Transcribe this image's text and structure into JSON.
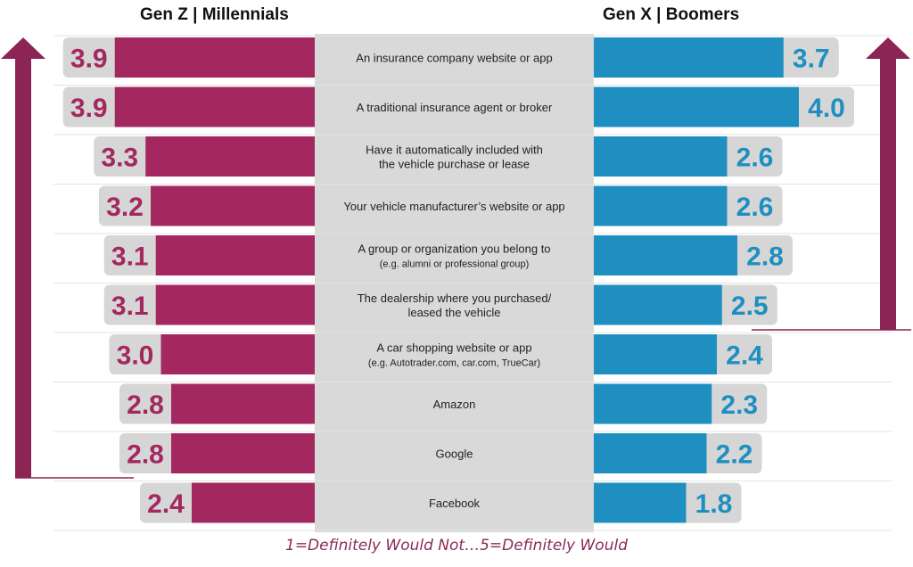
{
  "chart_data": {
    "type": "bar",
    "left_header": "Gen Z | Millennials",
    "right_header": "Gen X | Boomers",
    "categories": [
      {
        "line1": "An insurance company website or app",
        "line2": "",
        "sub": ""
      },
      {
        "line1": "A traditional insurance agent or broker",
        "line2": "",
        "sub": ""
      },
      {
        "line1": "Have it automatically included with",
        "line2": "the vehicle purchase or lease",
        "sub": ""
      },
      {
        "line1": "Your vehicle manufacturer’s website or app",
        "line2": "",
        "sub": ""
      },
      {
        "line1": "A group or organization you belong to",
        "line2": "",
        "sub": "(e.g. alumni or professional group)"
      },
      {
        "line1": "The dealership where you purchased/",
        "line2": "leased the vehicle",
        "sub": ""
      },
      {
        "line1": "A car shopping website or app",
        "line2": "",
        "sub": "(e.g. Autotrader.com, car.com, TrueCar)"
      },
      {
        "line1": "Amazon",
        "line2": "",
        "sub": ""
      },
      {
        "line1": "Google",
        "line2": "",
        "sub": ""
      },
      {
        "line1": "Facebook",
        "line2": "",
        "sub": ""
      }
    ],
    "series": [
      {
        "values": [
          3.9,
          3.9,
          3.3,
          3.2,
          3.1,
          3.1,
          3.0,
          2.8,
          2.8,
          2.4
        ],
        "labels": [
          "3.9",
          "3.9",
          "3.3",
          "3.2",
          "3.1",
          "3.1",
          "3.0",
          "2.8",
          "2.8",
          "2.4"
        ]
      },
      {
        "values": [
          3.7,
          4.0,
          2.6,
          2.6,
          2.8,
          2.5,
          2.4,
          2.3,
          2.2,
          1.8
        ],
        "labels": [
          "3.7",
          "4.0",
          "2.6",
          "2.6",
          "2.8",
          "2.5",
          "2.4",
          "2.3",
          "2.2",
          "1.8"
        ]
      }
    ],
    "xlim": [
      1,
      5
    ],
    "footnote": "1=Definitely Would Not…5=Definitely Would"
  },
  "colors": {
    "left_bar": "#a3285f",
    "right_bar": "#1e8fc0",
    "label_bg": "#d6d6d6",
    "center_bg": "#d9d9d9",
    "arrow": "#8c2455",
    "grid": "#e3e3e3"
  }
}
